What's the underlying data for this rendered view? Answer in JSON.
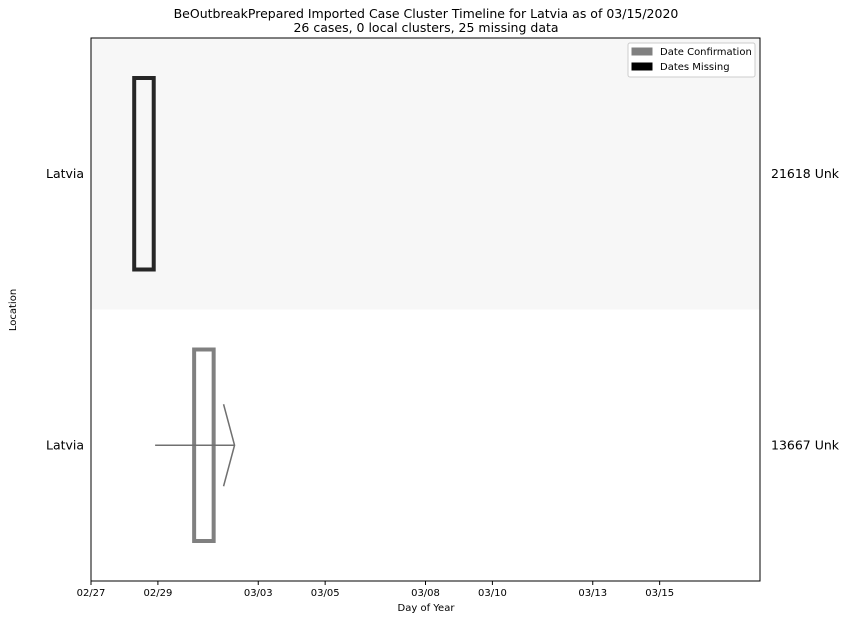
{
  "chart_data": {
    "type": "timeline",
    "title": "BeOutbreakPrepared Imported Case Cluster Timeline for Latvia as of 03/15/2020",
    "subtitle": "26 cases, 0 local clusters, 25 missing data",
    "xlabel": "Day of Year",
    "ylabel": "Location",
    "x_start": "2020-02-27",
    "xlim": [
      "2020-02-27",
      "2020-03-18"
    ],
    "ticks": [
      "02/27",
      "02/29",
      "03/03",
      "03/05",
      "03/08",
      "03/10",
      "03/13",
      "03/15"
    ],
    "rows": [
      {
        "location": "Latvia",
        "right_label": "21618 Unk",
        "band_color": "#f7f7f7",
        "box": {
          "start": "2020-02-28 07:00",
          "end": "2020-02-28 21:00",
          "color": "#262626"
        },
        "arrow": null
      },
      {
        "location": "Latvia",
        "right_label": "13667 Unk",
        "band_color": "#ffffff",
        "box": {
          "start": "2020-03-01 02:00",
          "end": "2020-03-01 16:00",
          "color": "#808080"
        },
        "arrow": {
          "from": "2020-02-28 22:00",
          "to": "2020-03-02 07:00",
          "color": "#707070"
        }
      }
    ],
    "legend": {
      "position": "top-right",
      "entries": [
        {
          "label": "Date Confirmation",
          "color": "#808080"
        },
        {
          "label": "Dates Missing",
          "color": "#000000"
        }
      ]
    }
  }
}
